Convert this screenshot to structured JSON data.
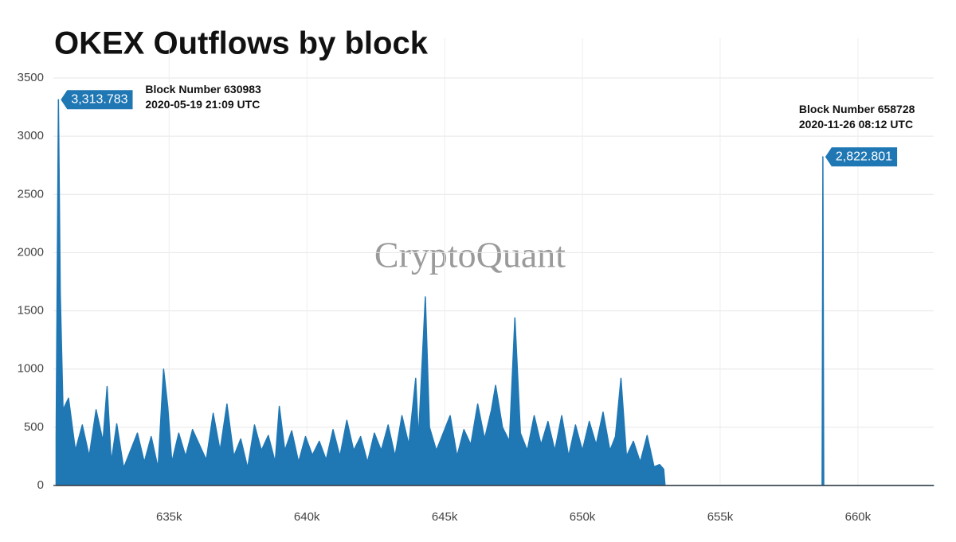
{
  "chart_data": {
    "type": "area",
    "title": "OKEX Outflows by block",
    "watermark": "CryptoQuant",
    "color": "#1f77b4",
    "grid": true,
    "x": [
      630900,
      630983,
      631050,
      631150,
      631350,
      631600,
      631850,
      632100,
      632350,
      632600,
      632750,
      632900,
      633100,
      633350,
      633600,
      633850,
      634100,
      634350,
      634600,
      634800,
      634950,
      635100,
      635350,
      635600,
      635850,
      636100,
      636350,
      636600,
      636850,
      637100,
      637350,
      637600,
      637850,
      638100,
      638350,
      638600,
      638850,
      639000,
      639200,
      639450,
      639700,
      639950,
      640200,
      640450,
      640700,
      640950,
      641200,
      641450,
      641700,
      641950,
      642200,
      642450,
      642700,
      642950,
      643200,
      643450,
      643700,
      643950,
      644050,
      644300,
      644450,
      644700,
      644950,
      645200,
      645450,
      645700,
      645950,
      646200,
      646450,
      646700,
      646850,
      647100,
      647350,
      647550,
      647750,
      648000,
      648250,
      648500,
      648750,
      649000,
      649250,
      649500,
      649750,
      650000,
      650250,
      650500,
      650750,
      651000,
      651200,
      651400,
      651600,
      651850,
      652100,
      652350,
      652600,
      652800,
      652950,
      653000,
      658700,
      658728,
      658760,
      662750
    ],
    "values": [
      430,
      3313.783,
      1650,
      650,
      750,
      300,
      520,
      250,
      650,
      380,
      850,
      200,
      530,
      150,
      300,
      450,
      200,
      420,
      150,
      1000,
      680,
      200,
      450,
      250,
      480,
      350,
      220,
      620,
      300,
      700,
      250,
      400,
      150,
      520,
      300,
      430,
      200,
      680,
      300,
      470,
      200,
      420,
      260,
      380,
      220,
      480,
      250,
      560,
      300,
      420,
      200,
      450,
      300,
      520,
      250,
      600,
      350,
      920,
      400,
      1620,
      500,
      300,
      450,
      600,
      250,
      480,
      350,
      700,
      400,
      650,
      860,
      500,
      380,
      1440,
      450,
      300,
      600,
      350,
      550,
      300,
      600,
      250,
      520,
      300,
      550,
      350,
      630,
      300,
      420,
      920,
      250,
      380,
      200,
      430,
      160,
      180,
      140,
      0,
      0,
      2822.801,
      0,
      0
    ],
    "xlim": [
      630800,
      662750
    ],
    "ylim": [
      0,
      3500
    ],
    "yticks": [
      0,
      500,
      1000,
      1500,
      2000,
      2500,
      3000,
      3500
    ],
    "xticks": [
      {
        "value": 635000,
        "label": "635k"
      },
      {
        "value": 640000,
        "label": "640k"
      },
      {
        "value": 645000,
        "label": "645k"
      },
      {
        "value": 650000,
        "label": "650k"
      },
      {
        "value": 655000,
        "label": "655k"
      },
      {
        "value": 660000,
        "label": "660k"
      }
    ],
    "annotations": [
      {
        "x": 630983,
        "y": 3313.783,
        "label": "3,313.783",
        "lines": [
          "Block Number 630983",
          "2020-05-19 21:09 UTC"
        ]
      },
      {
        "x": 658728,
        "y": 2822.801,
        "label": "2,822.801",
        "lines": [
          "Block Number 658728",
          "2020-11-26 08:12 UTC"
        ]
      }
    ]
  }
}
